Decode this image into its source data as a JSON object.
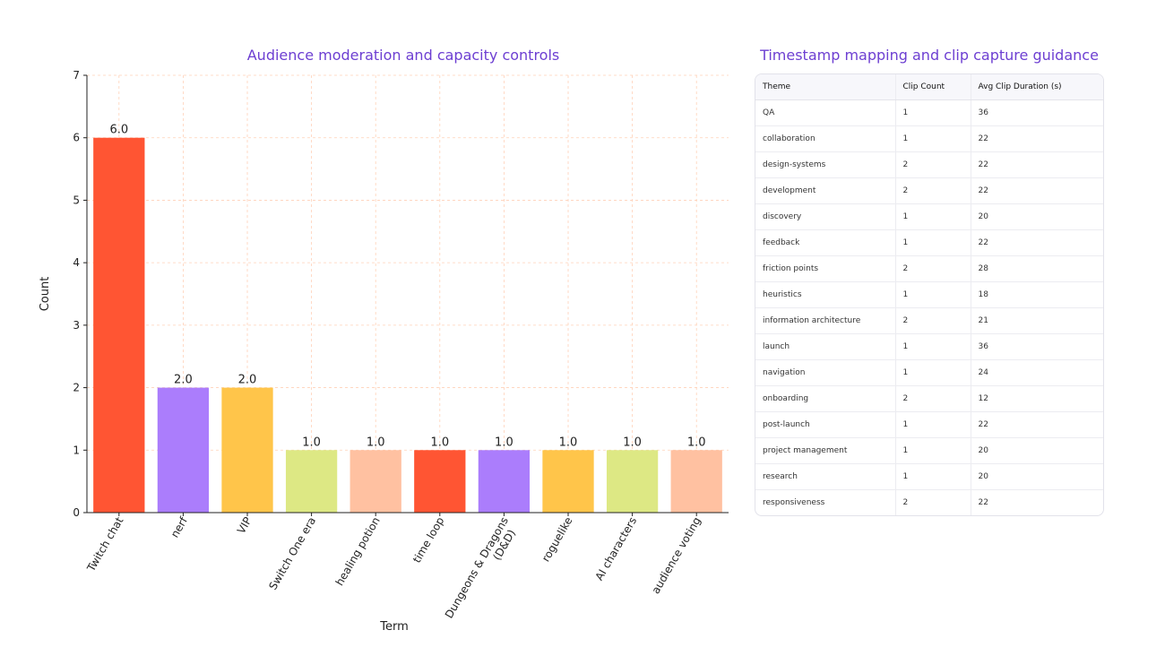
{
  "chart_data": {
    "type": "bar",
    "title": "Audience moderation and capacity controls",
    "xlabel": "Term",
    "ylabel": "Count",
    "ylim": [
      0,
      7
    ],
    "yticks": [
      0,
      1,
      2,
      3,
      4,
      5,
      6,
      7
    ],
    "grid": true,
    "categories": [
      "Twitch chat",
      "nerf",
      "VIP",
      "Switch One era",
      "healing potion",
      "time loop",
      "Dungeons & Dragons (D&D)",
      "roguelike",
      "AI characters",
      "audience voting"
    ],
    "values": [
      6.0,
      2.0,
      2.0,
      1.0,
      1.0,
      1.0,
      1.0,
      1.0,
      1.0,
      1.0
    ],
    "data_labels": [
      "6.0",
      "2.0",
      "2.0",
      "1.0",
      "1.0",
      "1.0",
      "1.0",
      "1.0",
      "1.0",
      "1.0"
    ],
    "colors": [
      "#ff5533",
      "#ab7dfc",
      "#ffc54a",
      "#dde884",
      "#ffc1a1",
      "#ff5533",
      "#ab7dfc",
      "#ffc54a",
      "#dde884",
      "#ffc1a1"
    ],
    "grid_color": "#ffd1b8"
  },
  "table": {
    "title": "Timestamp mapping and clip capture guidance",
    "headers": [
      "Theme",
      "Clip Count",
      "Avg Clip Duration (s)"
    ],
    "rows": [
      [
        "QA",
        "1",
        "36"
      ],
      [
        "collaboration",
        "1",
        "22"
      ],
      [
        "design-systems",
        "2",
        "22"
      ],
      [
        "development",
        "2",
        "22"
      ],
      [
        "discovery",
        "1",
        "20"
      ],
      [
        "feedback",
        "1",
        "22"
      ],
      [
        "friction points",
        "2",
        "28"
      ],
      [
        "heuristics",
        "1",
        "18"
      ],
      [
        "information architecture",
        "2",
        "21"
      ],
      [
        "launch",
        "1",
        "36"
      ],
      [
        "navigation",
        "1",
        "24"
      ],
      [
        "onboarding",
        "2",
        "12"
      ],
      [
        "post-launch",
        "1",
        "22"
      ],
      [
        "project management",
        "1",
        "20"
      ],
      [
        "research",
        "1",
        "20"
      ],
      [
        "responsiveness",
        "2",
        "22"
      ]
    ]
  }
}
